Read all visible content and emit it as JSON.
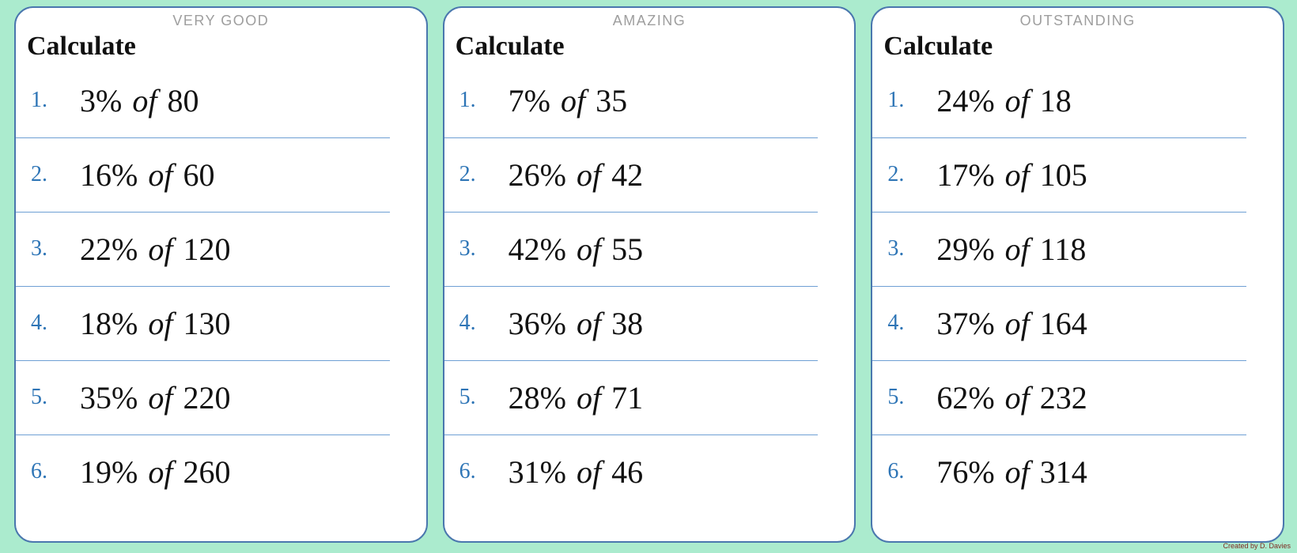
{
  "page": {
    "background_color": "#abebce",
    "credit": "Created by D. Davies"
  },
  "colors": {
    "card_border": "#4a77ae",
    "divider": "#6e9fd4",
    "number_blue": "#2e75b6",
    "badge_gray": "#9e9e9e"
  },
  "cards": [
    {
      "badge": "VERY GOOD",
      "title": "Calculate",
      "items": [
        {
          "label": "1.",
          "percent": "3%",
          "of": "of",
          "value": "80"
        },
        {
          "label": "2.",
          "percent": "16%",
          "of": "of",
          "value": "60"
        },
        {
          "label": "3.",
          "percent": "22%",
          "of": "of",
          "value": "120"
        },
        {
          "label": "4.",
          "percent": "18%",
          "of": "of",
          "value": "130"
        },
        {
          "label": "5.",
          "percent": "35%",
          "of": "of",
          "value": "220"
        },
        {
          "label": "6.",
          "percent": "19%",
          "of": "of",
          "value": "260"
        }
      ]
    },
    {
      "badge": "AMAZING",
      "title": "Calculate",
      "items": [
        {
          "label": "1.",
          "percent": "7%",
          "of": "of",
          "value": "35"
        },
        {
          "label": "2.",
          "percent": "26%",
          "of": "of",
          "value": "42"
        },
        {
          "label": "3.",
          "percent": "42%",
          "of": "of",
          "value": "55"
        },
        {
          "label": "4.",
          "percent": "36%",
          "of": "of",
          "value": "38"
        },
        {
          "label": "5.",
          "percent": "28%",
          "of": "of",
          "value": "71"
        },
        {
          "label": "6.",
          "percent": "31%",
          "of": "of",
          "value": "46"
        }
      ]
    },
    {
      "badge": "OUTSTANDING",
      "title": "Calculate",
      "items": [
        {
          "label": "1.",
          "percent": "24%",
          "of": "of",
          "value": "18"
        },
        {
          "label": "2.",
          "percent": "17%",
          "of": "of",
          "value": "105"
        },
        {
          "label": "3.",
          "percent": "29%",
          "of": "of",
          "value": "118"
        },
        {
          "label": "4.",
          "percent": "37%",
          "of": "of",
          "value": "164"
        },
        {
          "label": "5.",
          "percent": "62%",
          "of": "of",
          "value": "232"
        },
        {
          "label": "6.",
          "percent": "76%",
          "of": "of",
          "value": "314"
        }
      ]
    }
  ]
}
